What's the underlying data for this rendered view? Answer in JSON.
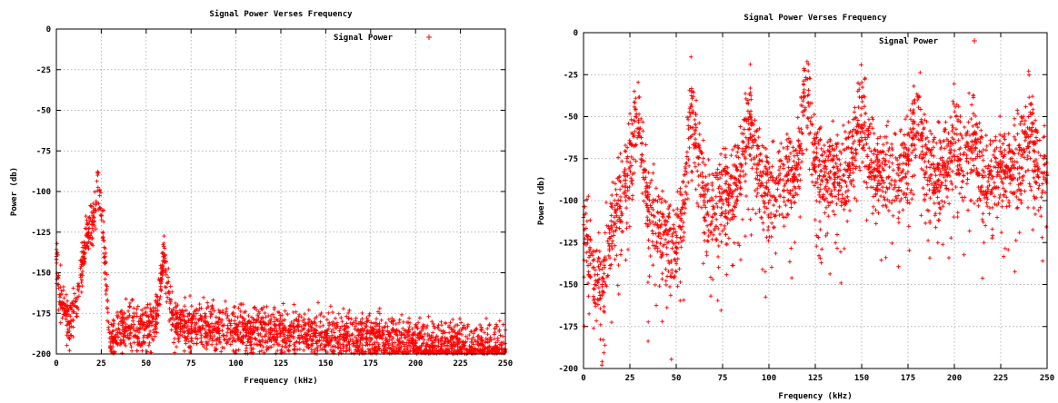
{
  "chart_data": [
    {
      "type": "scatter",
      "title": "Signal Power Verses Frequency",
      "xlabel": "Frequency (kHz)",
      "ylabel": "Power (db)",
      "xlim": [
        0,
        250
      ],
      "ylim": [
        -200,
        0
      ],
      "xticks": [
        "0",
        "25",
        "50",
        "75",
        "100",
        "125",
        "150",
        "175",
        "200",
        "225",
        "250"
      ],
      "yticks": [
        "0",
        "-25",
        "-50",
        "-75",
        "-100",
        "-125",
        "-150",
        "-175",
        "-200"
      ],
      "grid": true,
      "legend_position": "top-right",
      "marker": "+",
      "series": [
        {
          "name": "Signal Power",
          "color": "#ff0000",
          "x": [
            0,
            2,
            5,
            8,
            10,
            12,
            14,
            16,
            18,
            20,
            22,
            23,
            24,
            25,
            26,
            27,
            28,
            29,
            30,
            35,
            40,
            45,
            50,
            55,
            60,
            65,
            70,
            80,
            90,
            100,
            110,
            120,
            130,
            140,
            150,
            160,
            170,
            180,
            190,
            200,
            210,
            220,
            230,
            240,
            250
          ],
          "y": [
            -140,
            -165,
            -175,
            -180,
            -170,
            -160,
            -145,
            -135,
            -125,
            -118,
            -112,
            -90,
            -110,
            -115,
            -125,
            -140,
            -160,
            -185,
            -195,
            -185,
            -183,
            -184,
            -183,
            -182,
            -140,
            -182,
            -183,
            -184,
            -184,
            -185,
            -186,
            -186,
            -187,
            -188,
            -188,
            -189,
            -190,
            -190,
            -191,
            -192,
            -193,
            -194,
            -195,
            -196,
            -197
          ]
        }
      ]
    },
    {
      "type": "scatter",
      "title": "Signal Power Verses Frequency",
      "xlabel": "Frequency (kHz)",
      "ylabel": "Power (db)",
      "xlim": [
        0,
        250
      ],
      "ylim": [
        -200,
        0
      ],
      "xticks": [
        "0",
        "25",
        "50",
        "75",
        "100",
        "125",
        "150",
        "175",
        "200",
        "225",
        "250"
      ],
      "yticks": [
        "0",
        "-25",
        "-50",
        "-75",
        "-100",
        "-125",
        "-150",
        "-175",
        "-200"
      ],
      "grid": true,
      "legend_position": "top-right",
      "marker": "+",
      "series": [
        {
          "name": "Signal Power",
          "color": "#ff0000",
          "x": [
            0,
            5,
            10,
            15,
            20,
            25,
            28,
            30,
            35,
            40,
            45,
            50,
            55,
            58,
            60,
            65,
            70,
            75,
            80,
            85,
            90,
            95,
            100,
            105,
            110,
            115,
            120,
            125,
            130,
            135,
            140,
            145,
            150,
            155,
            160,
            165,
            170,
            175,
            180,
            185,
            190,
            195,
            200,
            205,
            210,
            215,
            220,
            225,
            230,
            235,
            240,
            245,
            250
          ],
          "y": [
            -110,
            -140,
            -150,
            -115,
            -100,
            -80,
            -50,
            -60,
            -105,
            -115,
            -120,
            -125,
            -95,
            -35,
            -60,
            -100,
            -105,
            -100,
            -95,
            -80,
            -50,
            -85,
            -95,
            -90,
            -85,
            -80,
            -28,
            -80,
            -85,
            -80,
            -85,
            -75,
            -45,
            -80,
            -85,
            -80,
            -85,
            -75,
            -40,
            -80,
            -85,
            -80,
            -60,
            -85,
            -60,
            -85,
            -85,
            -80,
            -85,
            -80,
            -50,
            -80,
            -85
          ]
        }
      ]
    }
  ]
}
